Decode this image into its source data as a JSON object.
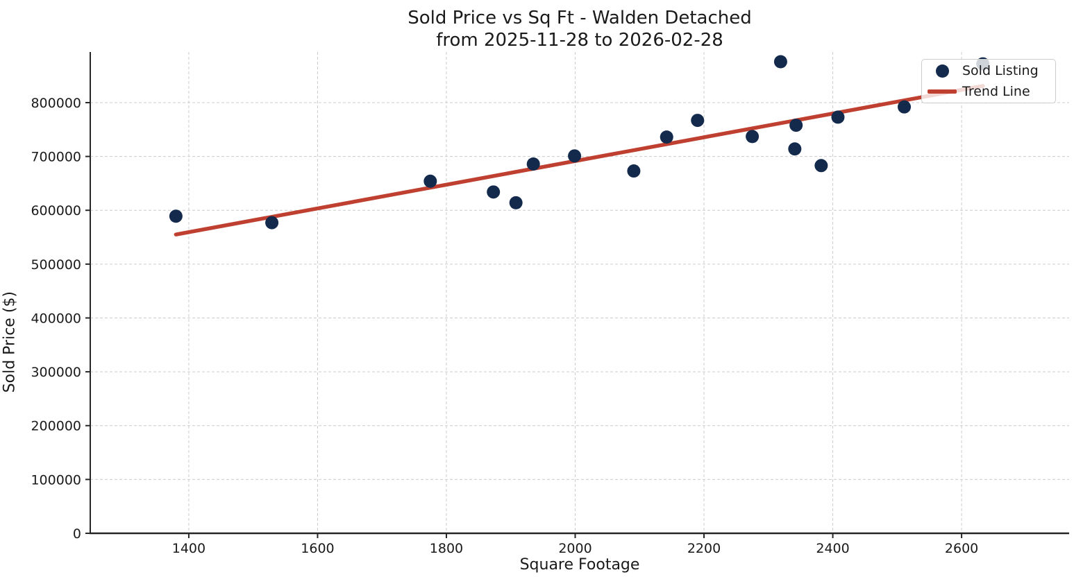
{
  "chart_data": {
    "type": "scatter",
    "title": "Sold Price vs Sq Ft - Walden Detached",
    "subtitle": "from 2025-11-28 to 2026-02-28",
    "xlabel": "Square Footage",
    "ylabel": "Sold Price ($)",
    "xlim": [
      1247,
      2767
    ],
    "ylim": [
      0,
      894000
    ],
    "x_ticks": [
      1400,
      1600,
      1800,
      2000,
      2200,
      2400,
      2600
    ],
    "y_ticks": [
      0,
      100000,
      200000,
      300000,
      400000,
      500000,
      600000,
      700000,
      800000
    ],
    "grid": true,
    "grid_style": "dashed",
    "legend_position": "upper right",
    "colors": {
      "dot": "#132A4C",
      "trend": "#BF4030",
      "grid": "#CCCCCC",
      "spine": "#262626",
      "text": "#1A1A1A"
    },
    "series": [
      {
        "name": "Sold Listing",
        "type": "scatter",
        "color": "#132A4C",
        "marker_radius": 9.5,
        "points": [
          [
            1380,
            589000
          ],
          [
            1529,
            577000
          ],
          [
            1775,
            654000
          ],
          [
            1873,
            634000
          ],
          [
            1908,
            614000
          ],
          [
            1935,
            686000
          ],
          [
            1999,
            701000
          ],
          [
            2091,
            673000
          ],
          [
            2142,
            736000
          ],
          [
            2190,
            767000
          ],
          [
            2275,
            737000
          ],
          [
            2319,
            876000
          ],
          [
            2341,
            714000
          ],
          [
            2343,
            758000
          ],
          [
            2382,
            683000
          ],
          [
            2408,
            773000
          ],
          [
            2511,
            792000
          ],
          [
            2633,
            872000
          ]
        ]
      },
      {
        "name": "Trend Line",
        "type": "line",
        "color": "#BF4030",
        "line_width": 5.5,
        "points": [
          [
            1380,
            555000
          ],
          [
            2633,
            831000
          ]
        ]
      }
    ]
  }
}
